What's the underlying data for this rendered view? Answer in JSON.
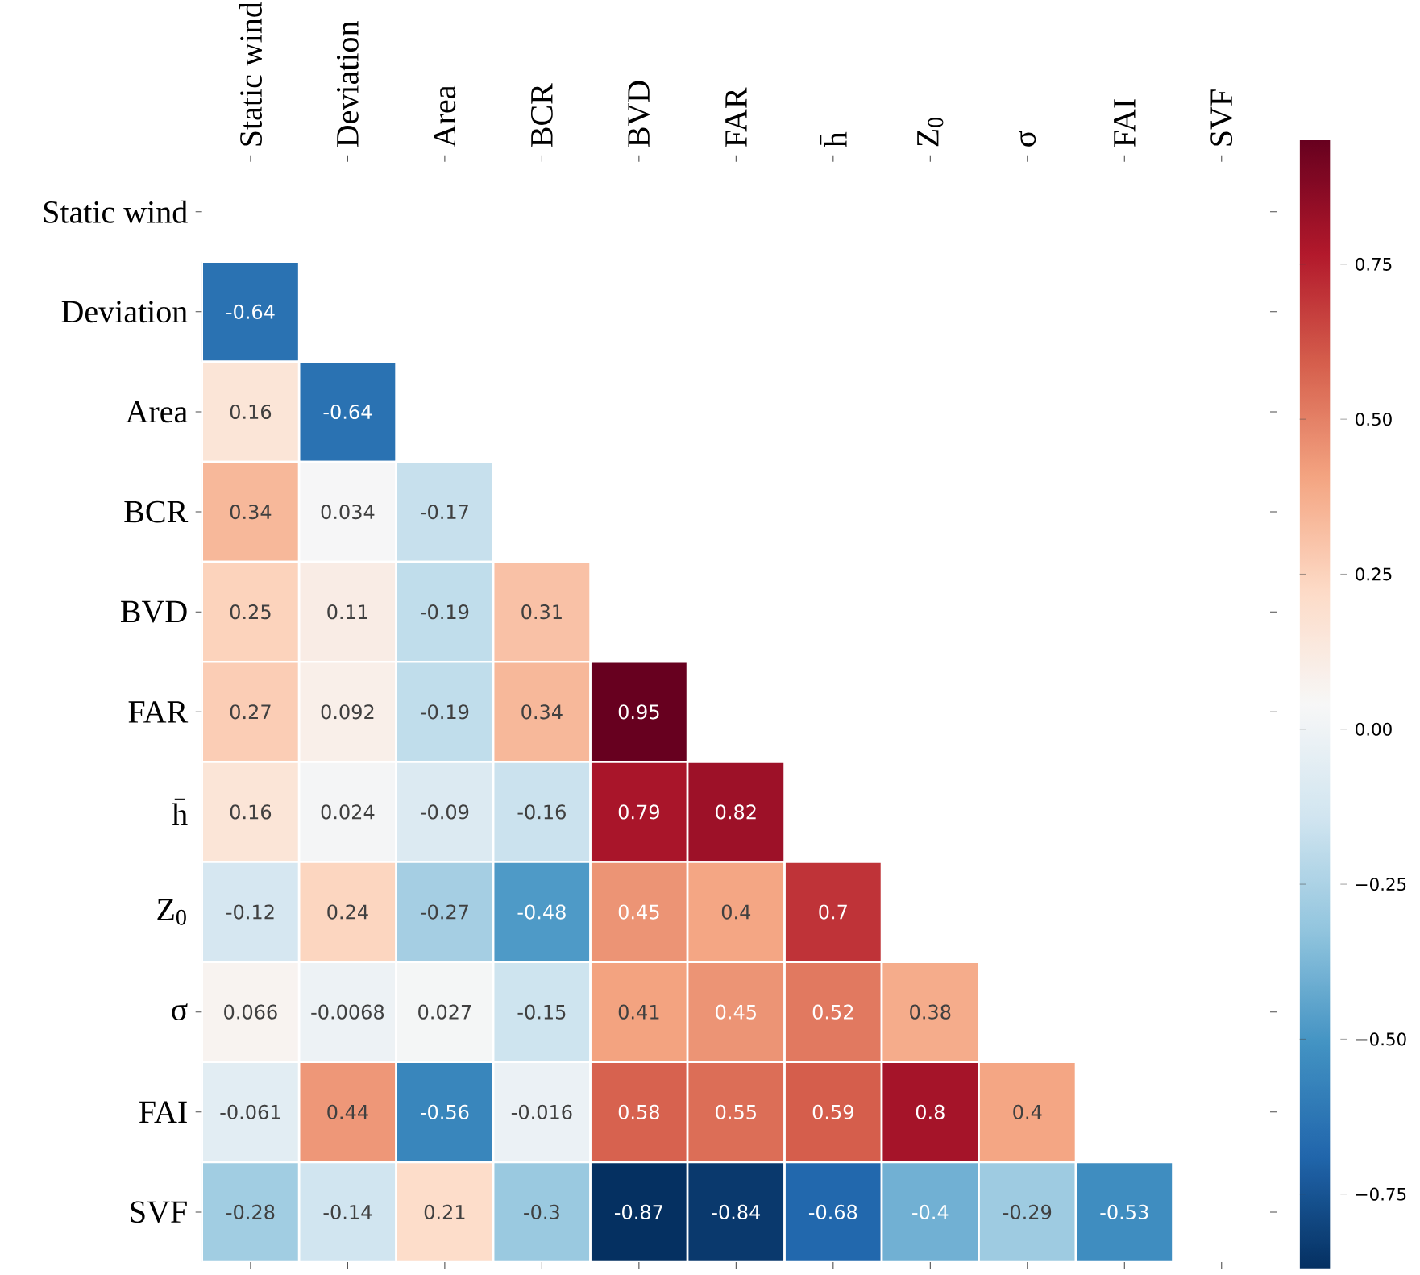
{
  "chart_data": {
    "type": "heatmap",
    "categories": [
      "Static wind",
      "Deviation",
      "Area",
      "BCR",
      "BVD",
      "FAR",
      "h̄",
      "Z$_{0}$",
      "σ",
      "FAI",
      "SVF"
    ],
    "y_categories": [
      "Static wind",
      "Deviation",
      "Area",
      "BCR",
      "BVD",
      "FAR",
      "h̄",
      "Z$_{0}$",
      "σ",
      "FAI",
      "SVF"
    ],
    "cells": [
      [
        null,
        null,
        null,
        null,
        null,
        null,
        null,
        null,
        null,
        null,
        null
      ],
      [
        -0.64,
        null,
        null,
        null,
        null,
        null,
        null,
        null,
        null,
        null,
        null
      ],
      [
        0.16,
        -0.64,
        null,
        null,
        null,
        null,
        null,
        null,
        null,
        null,
        null
      ],
      [
        0.34,
        0.034,
        -0.17,
        null,
        null,
        null,
        null,
        null,
        null,
        null,
        null
      ],
      [
        0.25,
        0.11,
        -0.19,
        0.31,
        null,
        null,
        null,
        null,
        null,
        null,
        null
      ],
      [
        0.27,
        0.092,
        -0.19,
        0.34,
        0.95,
        null,
        null,
        null,
        null,
        null,
        null
      ],
      [
        0.16,
        0.024,
        -0.09,
        -0.16,
        0.79,
        0.82,
        null,
        null,
        null,
        null,
        null
      ],
      [
        -0.12,
        0.24,
        -0.27,
        -0.48,
        0.45,
        0.4,
        0.7,
        null,
        null,
        null,
        null
      ],
      [
        0.066,
        -0.0068,
        0.027,
        -0.15,
        0.41,
        0.45,
        0.52,
        0.38,
        null,
        null,
        null
      ],
      [
        -0.061,
        0.44,
        -0.56,
        -0.016,
        0.58,
        0.55,
        0.59,
        0.8,
        0.4,
        null,
        null
      ],
      [
        -0.28,
        -0.14,
        0.21,
        -0.3,
        -0.87,
        -0.84,
        -0.68,
        -0.4,
        -0.29,
        -0.53,
        null
      ]
    ],
    "clim": [
      -0.87,
      0.95
    ],
    "cticks": [
      {
        "value": 0.75,
        "label": "0.75"
      },
      {
        "value": 0.5,
        "label": "0.50"
      },
      {
        "value": 0.25,
        "label": "0.25"
      },
      {
        "value": 0,
        "label": "0.00"
      },
      {
        "value": -0.25,
        "label": "−0.25"
      },
      {
        "value": -0.5,
        "label": "−0.50"
      },
      {
        "value": -0.75,
        "label": "−0.75"
      }
    ],
    "data_labels": true
  }
}
